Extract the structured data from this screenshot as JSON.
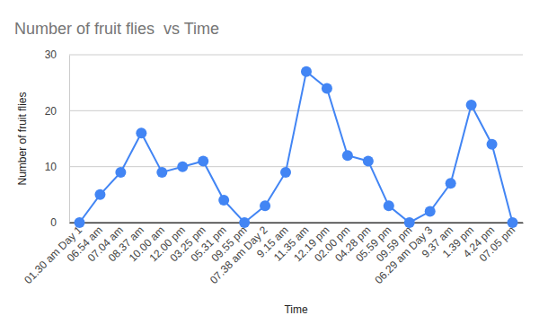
{
  "chart_data": {
    "type": "line",
    "title": "Number of fruit flies  vs Time",
    "x_label": "Time",
    "y_label": "Number of fruit flies",
    "categories": [
      "01.30 am Day 1",
      "06.54 am",
      "07.04 am",
      "08.37 am",
      "10.00 am",
      "12.00 pm",
      "03.25 pm",
      "05.31 pm",
      "09.55 pm",
      "07.38 am Day 2",
      "9.15 am",
      "11.35 am",
      "12.19 pm",
      "02.00 pm",
      "04.28 pm",
      "05.59 pm",
      "09.59 pm",
      "06.29 am Day 3",
      "9.37 am",
      "1.39 pm",
      "4.24 pm",
      "07.05 pm"
    ],
    "values": [
      0,
      5,
      9,
      16,
      9,
      10,
      11,
      4,
      0,
      3,
      9,
      27,
      24,
      12,
      11,
      3,
      0,
      2,
      7,
      21,
      14,
      0
    ],
    "color": "#4285f4",
    "marker": "circle",
    "ylim": [
      0,
      30
    ],
    "yticks": [
      0,
      10,
      20,
      30
    ],
    "grid": true
  }
}
